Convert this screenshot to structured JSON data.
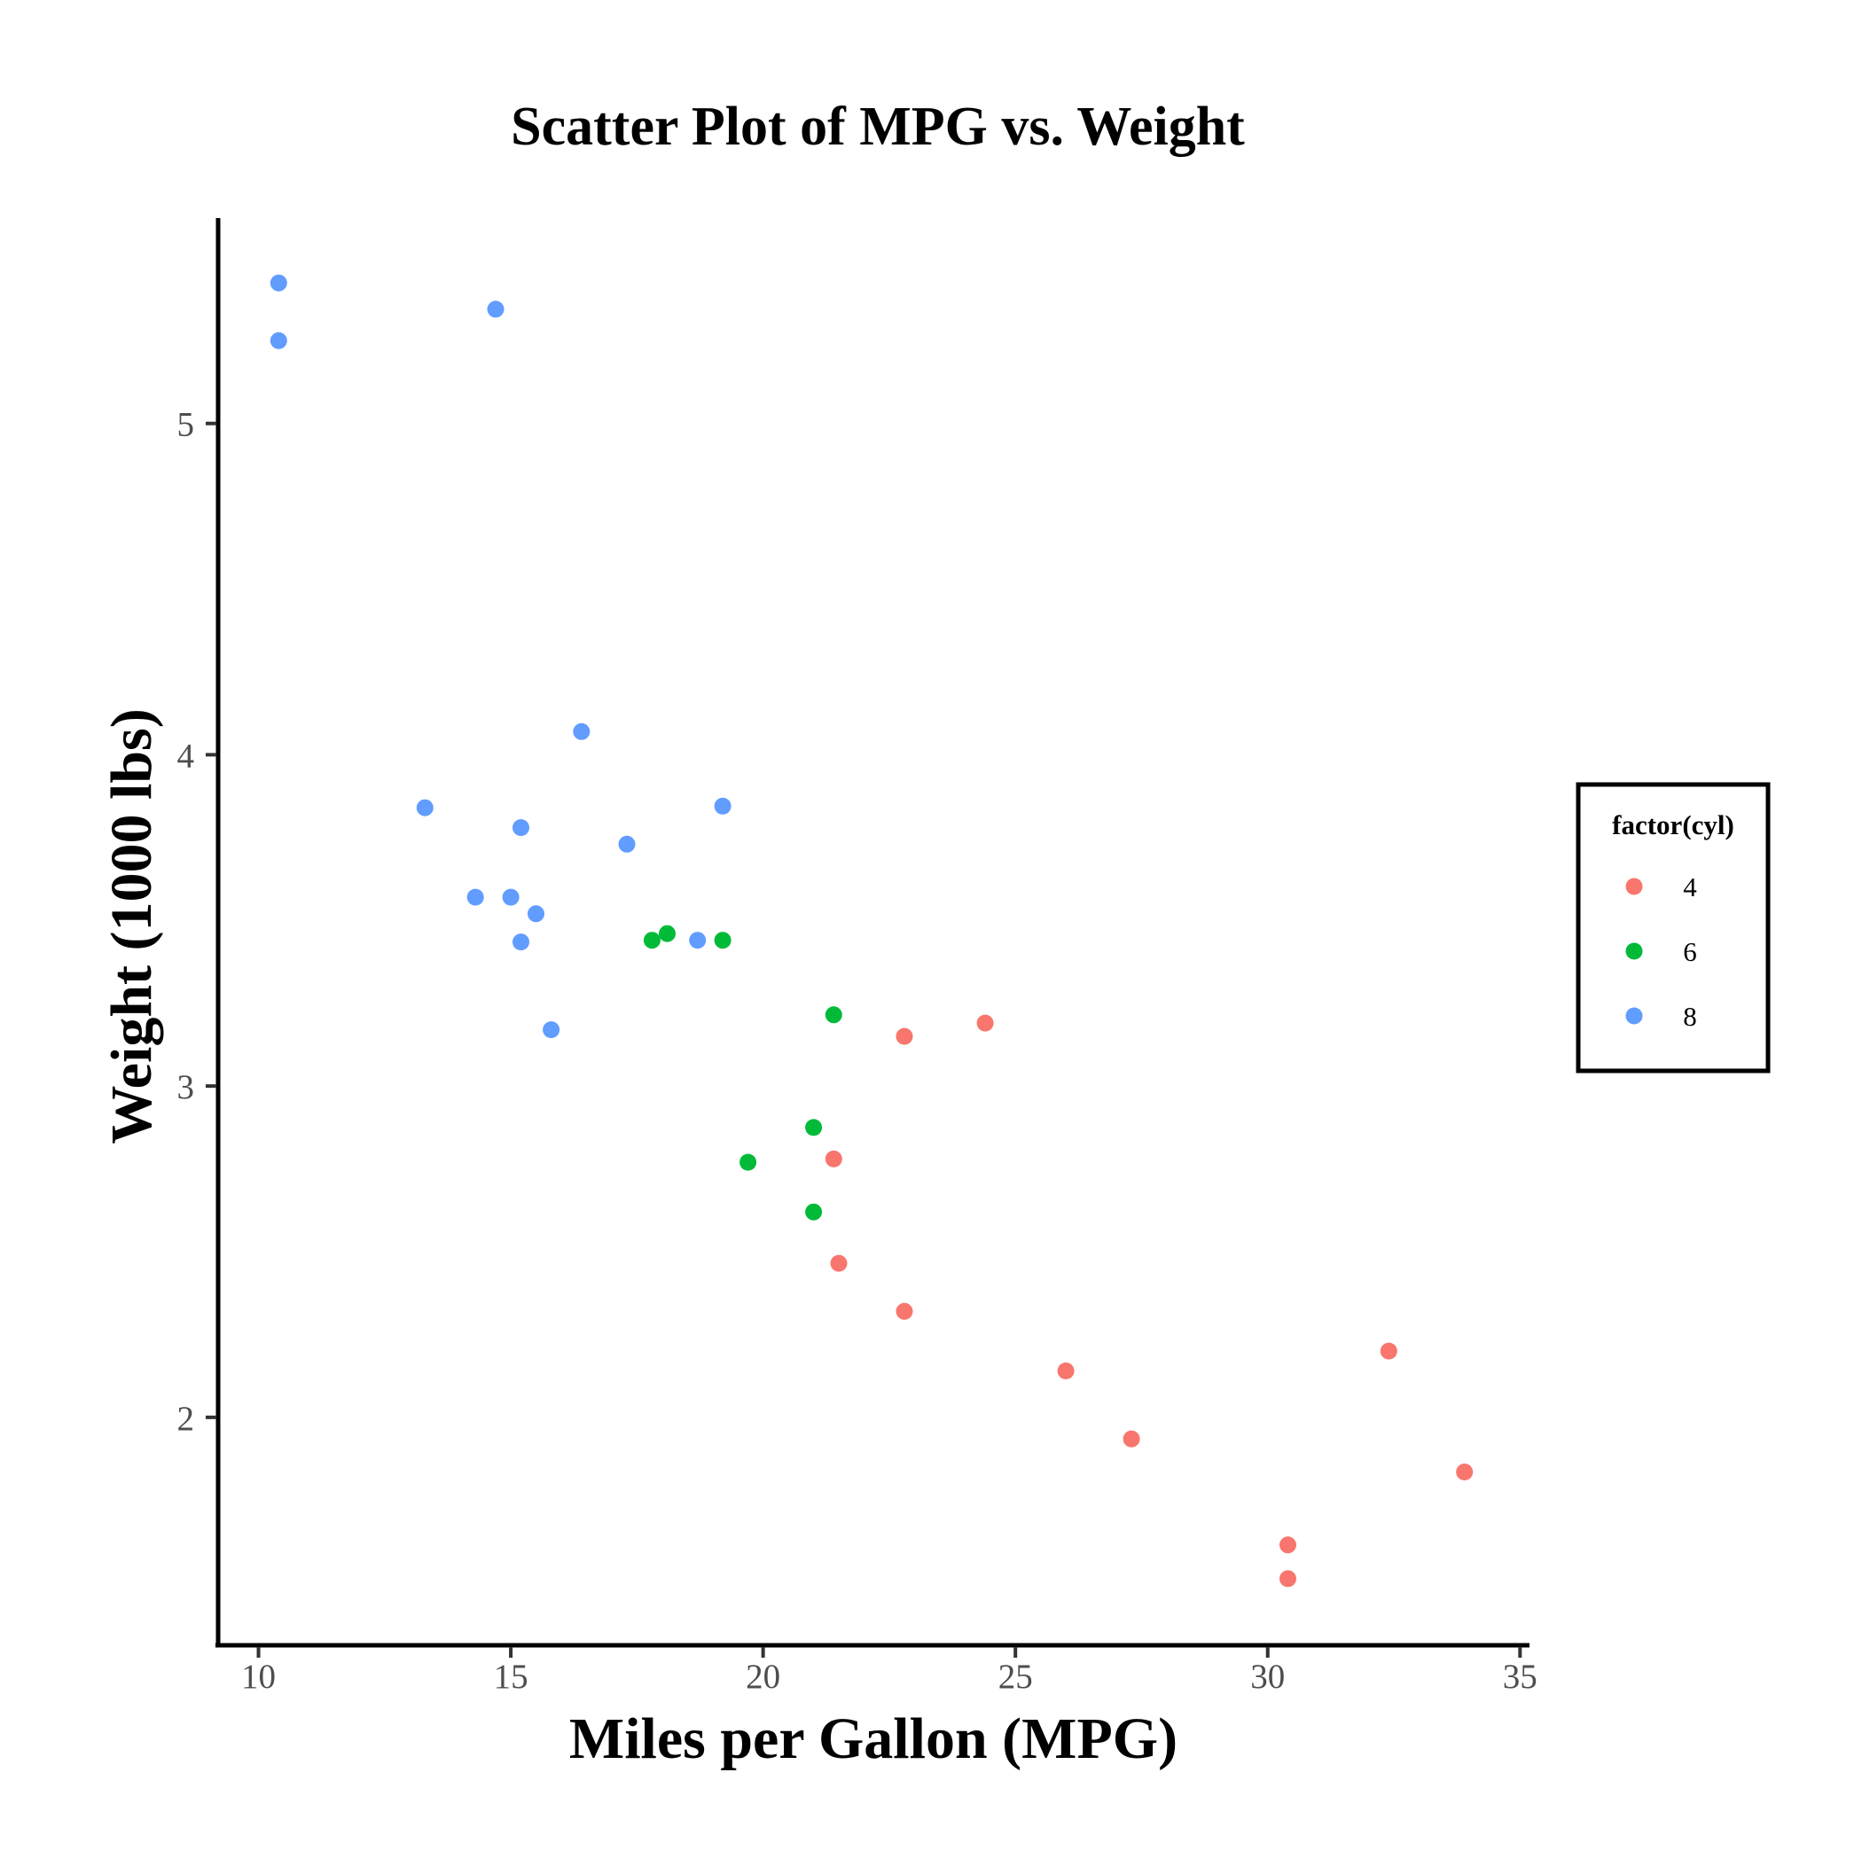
{
  "chart_data": {
    "type": "scatter",
    "title": "Scatter Plot of MPG vs. Weight",
    "xlabel": "Miles per Gallon (MPG)",
    "ylabel": "Weight (1000 lbs)",
    "xlim": [
      9.2,
      35.1
    ],
    "ylim": [
      1.32,
      5.62
    ],
    "xticks": [
      10,
      15,
      20,
      25,
      30,
      35
    ],
    "yticks": [
      2,
      3,
      4,
      5
    ],
    "grid": false,
    "legend": {
      "title": "factor(cyl)",
      "position": "right"
    },
    "series": [
      {
        "name": "4",
        "color": "#F8766D",
        "points": [
          [
            22.8,
            2.32
          ],
          [
            24.4,
            3.19
          ],
          [
            22.8,
            3.15
          ],
          [
            32.4,
            2.2
          ],
          [
            30.4,
            1.615
          ],
          [
            33.9,
            1.835
          ],
          [
            21.5,
            2.465
          ],
          [
            27.3,
            1.935
          ],
          [
            26.0,
            2.14
          ],
          [
            30.4,
            1.513
          ],
          [
            21.4,
            2.78
          ]
        ]
      },
      {
        "name": "6",
        "color": "#00BA38",
        "points": [
          [
            21.0,
            2.62
          ],
          [
            21.0,
            2.875
          ],
          [
            21.4,
            3.215
          ],
          [
            18.1,
            3.46
          ],
          [
            19.2,
            3.44
          ],
          [
            17.8,
            3.44
          ],
          [
            19.7,
            2.77
          ]
        ]
      },
      {
        "name": "8",
        "color": "#619CFF",
        "points": [
          [
            18.7,
            3.44
          ],
          [
            14.3,
            3.57
          ],
          [
            16.4,
            4.07
          ],
          [
            17.3,
            3.73
          ],
          [
            15.2,
            3.78
          ],
          [
            10.4,
            5.25
          ],
          [
            10.4,
            5.424
          ],
          [
            14.7,
            5.345
          ],
          [
            15.5,
            3.52
          ],
          [
            15.2,
            3.435
          ],
          [
            13.3,
            3.84
          ],
          [
            19.2,
            3.845
          ],
          [
            15.8,
            3.17
          ],
          [
            15.0,
            3.57
          ]
        ]
      }
    ]
  }
}
